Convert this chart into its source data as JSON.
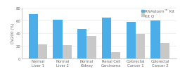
{
  "categories": [
    "Normal\nLiver 1",
    "Normal\nLiver 2",
    "Normal\nKidney",
    "Renal Cell\nCarcinoma",
    "Colorectal\nCancer 1",
    "Colorectal\nCancer 2"
  ],
  "rnastorm_values": [
    70,
    61,
    46,
    64,
    57,
    60
  ],
  "kitq_values": [
    22,
    21,
    35,
    10,
    38,
    24
  ],
  "rnastorm_color": "#4BAEE8",
  "kitq_color": "#C8C8C8",
  "ylabel": "DV200 (%)",
  "ylim": [
    0,
    80
  ],
  "yticks": [
    0,
    20,
    40,
    60,
    80
  ],
  "legend_rnastorm": "RNAstorm™ Kit",
  "legend_kitq": "Kit Q",
  "bar_width": 0.38,
  "label_fontsize": 4.0,
  "tick_fontsize": 3.8,
  "legend_fontsize": 4.0,
  "background_color": "#ffffff"
}
